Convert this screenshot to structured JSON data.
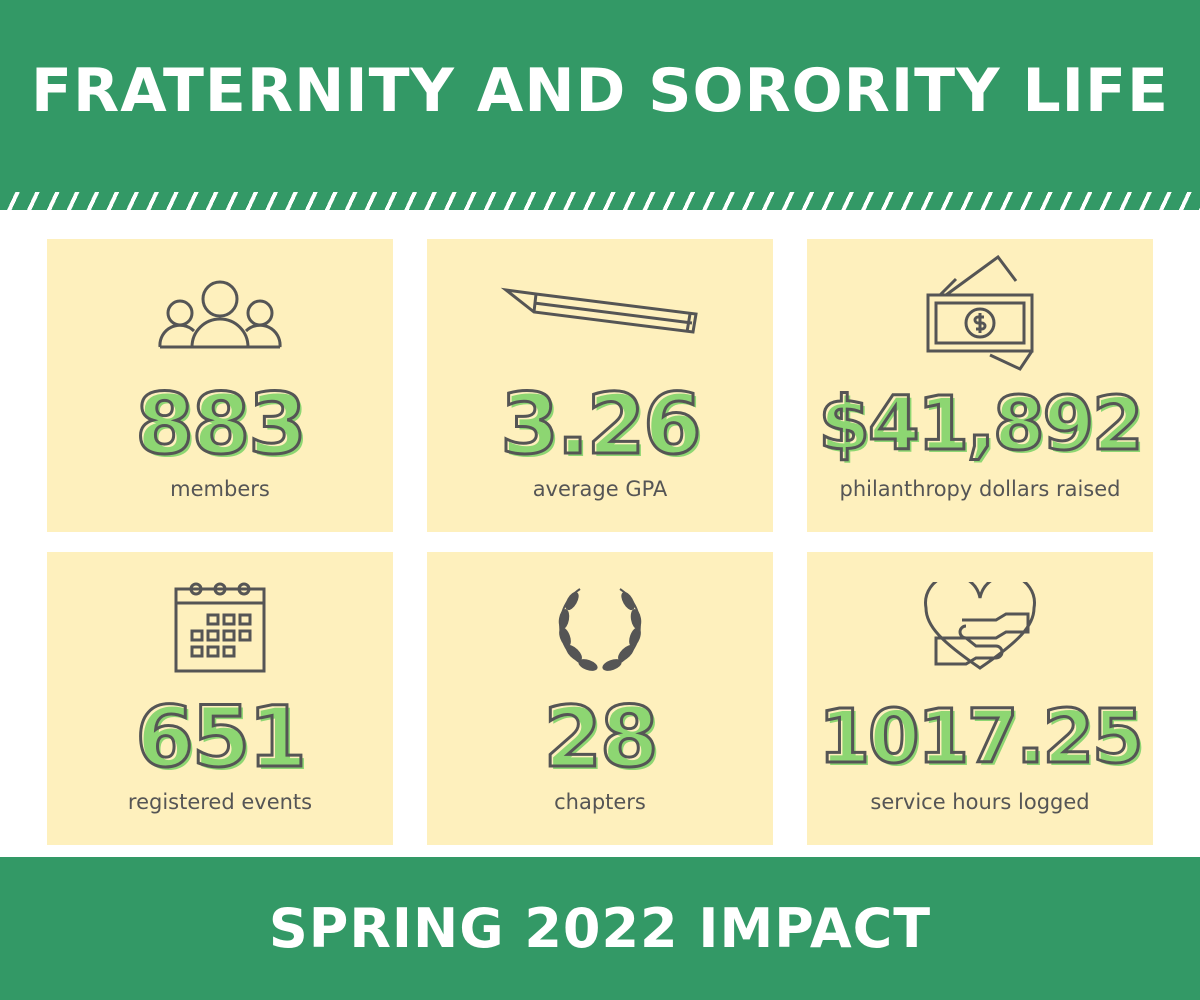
{
  "header": {
    "title": "FRATERNITY AND SORORITY LIFE"
  },
  "colors": {
    "brand_green": "#339966",
    "card": "#fef0bd",
    "number_fill": "#8dd672",
    "outline": "#555555"
  },
  "stats": [
    {
      "value": "883",
      "label": "members",
      "icon": "people-icon"
    },
    {
      "value": "3.26",
      "label": "average GPA",
      "icon": "pencil-icon"
    },
    {
      "value": "$41,892",
      "label": "philanthropy dollars raised",
      "icon": "money-icon"
    },
    {
      "value": "651",
      "label": "registered events",
      "icon": "calendar-icon"
    },
    {
      "value": "28",
      "label": "chapters",
      "icon": "laurel-wreath-icon"
    },
    {
      "value": "1017.25",
      "label": "service hours logged",
      "icon": "heart-hands-icon"
    }
  ],
  "footer": {
    "title": "SPRING 2022 IMPACT"
  }
}
